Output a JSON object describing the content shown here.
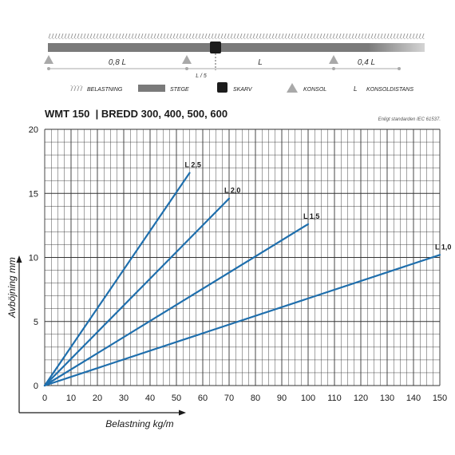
{
  "diagram": {
    "spans": [
      "0,8 L",
      "L",
      "0,4 L"
    ],
    "splice_offset": "L / 5",
    "legend": [
      {
        "key": "load",
        "label": "BELASTNING"
      },
      {
        "key": "tray",
        "label": "STEGE"
      },
      {
        "key": "splice",
        "label": "SKARV"
      },
      {
        "key": "support",
        "label": "KONSOL"
      },
      {
        "key": "distance",
        "symbol": "L",
        "label": "KONSOLDISTANS"
      }
    ]
  },
  "header": {
    "title": "WMT 150  | BREDD 300, 400, 500, 600",
    "note": "Enligt standarden IEC 61537."
  },
  "colors": {
    "line": "#1f6fad",
    "grid": "#333333",
    "tray": "#7a7a7a",
    "splice": "#1c1c1c",
    "support": "#a9a9a9"
  },
  "chart_data": {
    "type": "line",
    "xlabel": "Belastning kg/m",
    "ylabel": "Avböjning mm",
    "xlim": [
      0,
      150
    ],
    "ylim": [
      0,
      20
    ],
    "x_ticks": [
      0,
      10,
      20,
      30,
      40,
      50,
      60,
      70,
      80,
      90,
      100,
      110,
      120,
      130,
      140,
      150
    ],
    "y_ticks": [
      0,
      5,
      10,
      15,
      20
    ],
    "grid": true,
    "series": [
      {
        "name": "L 2,5",
        "x": [
          0,
          55
        ],
        "y": [
          0,
          16.6
        ]
      },
      {
        "name": "L 2,0",
        "x": [
          0,
          70
        ],
        "y": [
          0,
          14.6
        ]
      },
      {
        "name": "L 1,5",
        "x": [
          0,
          100
        ],
        "y": [
          0,
          12.6
        ]
      },
      {
        "name": "L 1,0",
        "x": [
          0,
          150
        ],
        "y": [
          0,
          10.2
        ]
      }
    ]
  }
}
